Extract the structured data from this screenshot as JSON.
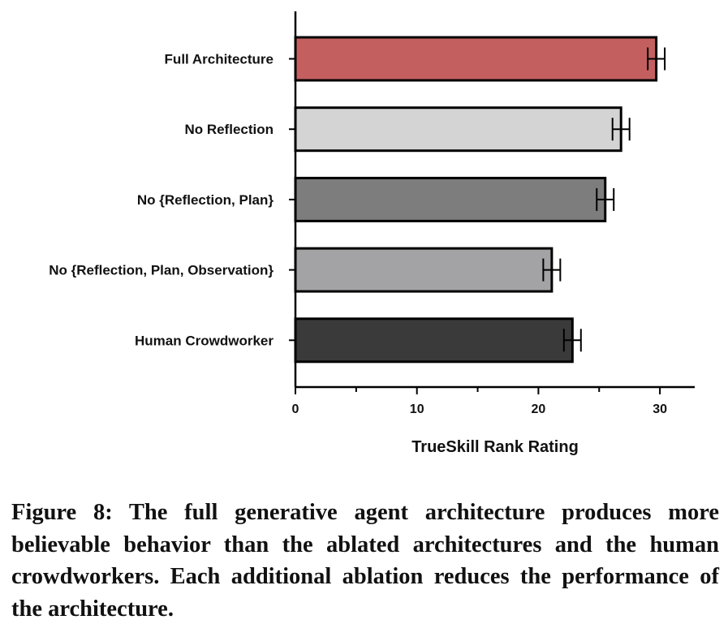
{
  "chart_data": {
    "type": "bar",
    "orientation": "horizontal",
    "categories": [
      "Full Architecture",
      "No Reflection",
      "No {Reflection, Plan}",
      "No {Reflection, Plan, Observation}",
      "Human Crowdworker"
    ],
    "values": [
      29.7,
      26.8,
      25.5,
      21.1,
      22.8
    ],
    "errors": [
      0.7,
      0.7,
      0.7,
      0.7,
      0.7
    ],
    "colors": [
      "#c45f60",
      "#d4d4d4",
      "#7d7d7d",
      "#a3a3a6",
      "#3a3a3a"
    ],
    "xlabel": "TrueSkill Rank Rating",
    "ylabel": "",
    "xlim": [
      0,
      33
    ],
    "xticks": [
      0,
      10,
      20,
      30
    ],
    "xtick_labels": [
      "0",
      "10",
      "20",
      "30"
    ],
    "grid": false
  },
  "caption": "Figure 8: The full generative agent architecture produces more believable behavior than the ablated architectures and the human crowdworkers. Each additional ablation reduces the performance of the architecture."
}
